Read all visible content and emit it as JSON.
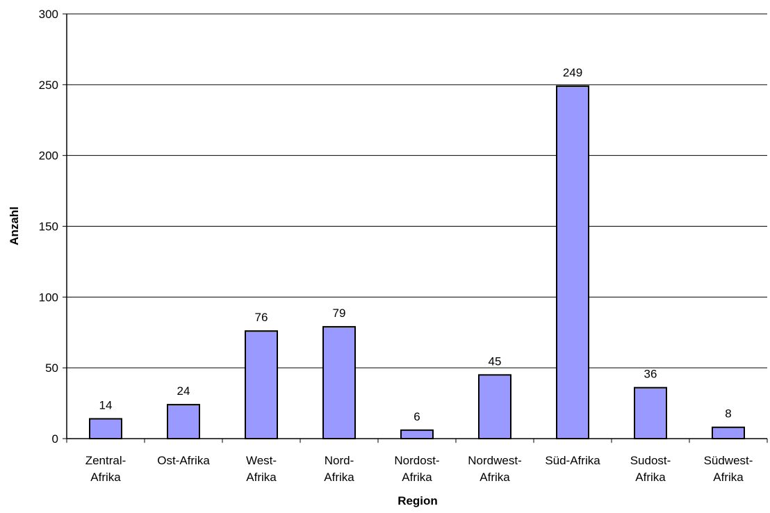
{
  "chart_data": {
    "type": "bar",
    "title": "",
    "xlabel": "Region",
    "ylabel": "Anzahl",
    "ylim": [
      0,
      300
    ],
    "yticks": [
      0,
      50,
      100,
      150,
      200,
      250,
      300
    ],
    "grid": true,
    "legend": "none",
    "bar_color": "#9999ff",
    "categories": [
      [
        "Zentral-",
        "Afrika"
      ],
      [
        "Ost-Afrika"
      ],
      [
        "West-",
        "Afrika"
      ],
      [
        "Nord-",
        "Afrika"
      ],
      [
        "Nordost-",
        "Afrika"
      ],
      [
        "Nordwest-",
        "Afrika"
      ],
      [
        "Süd-Afrika"
      ],
      [
        "Sudost-",
        "Afrika"
      ],
      [
        "Südwest-",
        "Afrika"
      ]
    ],
    "values": [
      14,
      24,
      76,
      79,
      6,
      45,
      249,
      36,
      8
    ]
  }
}
